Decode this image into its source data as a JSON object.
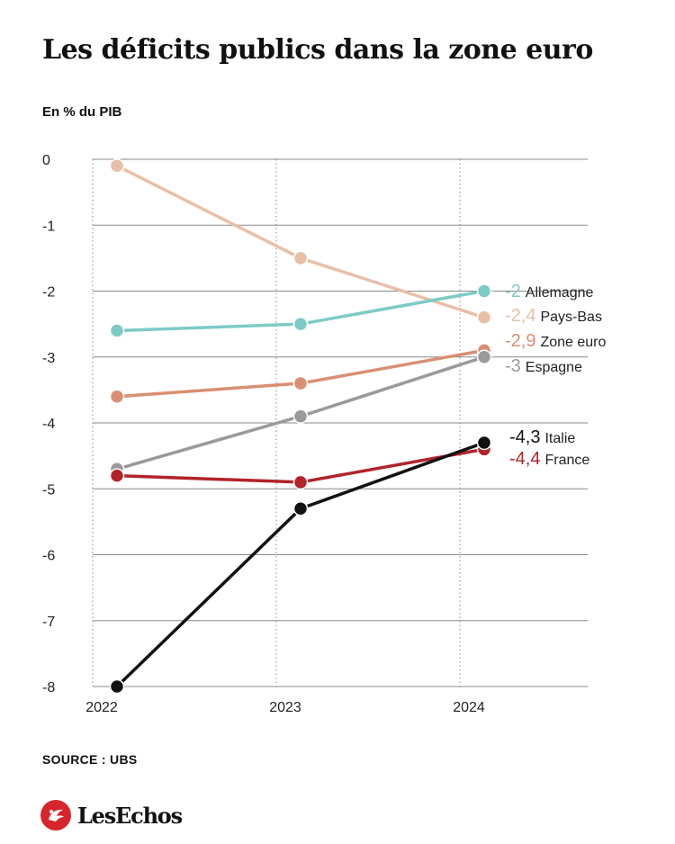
{
  "header": {
    "title": "Les déficits publics dans la zone euro",
    "unit": "En % du PIB"
  },
  "footer": {
    "source": "SOURCE : UBS",
    "brand": "LesEchos"
  },
  "chart_data": {
    "type": "line",
    "title": "Les déficits publics dans la zone euro",
    "ylabel": "En % du PIB",
    "xlabel": "",
    "x": [
      "2022",
      "2023",
      "2024"
    ],
    "ylim": [
      -8,
      0
    ],
    "yticks": [
      0,
      -1,
      -2,
      -3,
      -4,
      -5,
      -6,
      -7,
      -8
    ],
    "ytick_labels": [
      "0",
      "-1",
      "-2",
      "-3",
      "-4",
      "-5",
      "-6",
      "-7",
      "-8"
    ],
    "grid": "horizontal solid, vertical dotted",
    "legend": "direct labels at line ends (right)",
    "series": [
      {
        "name": "Pays-Bas",
        "values": [
          -0.1,
          -1.5,
          -2.4
        ],
        "color": "#e9bfa8",
        "end_label": "-2,4"
      },
      {
        "name": "Allemagne",
        "values": [
          -2.6,
          -2.5,
          -2.0
        ],
        "color": "#7dcbc6",
        "end_label": "-2"
      },
      {
        "name": "Zone euro",
        "values": [
          -3.6,
          -3.4,
          -2.9
        ],
        "color": "#d98f72",
        "end_label": "-2,9"
      },
      {
        "name": "Espagne",
        "values": [
          -4.7,
          -3.9,
          -3.0
        ],
        "color": "#9a9a9a",
        "end_label": "-3"
      },
      {
        "name": "France",
        "values": [
          -4.8,
          -4.9,
          -4.4
        ],
        "color": "#b3232a",
        "end_label": "-4,4"
      },
      {
        "name": "Italie",
        "values": [
          -8.0,
          -5.3,
          -4.3
        ],
        "color": "#111111",
        "end_label": "-4,3"
      }
    ]
  }
}
